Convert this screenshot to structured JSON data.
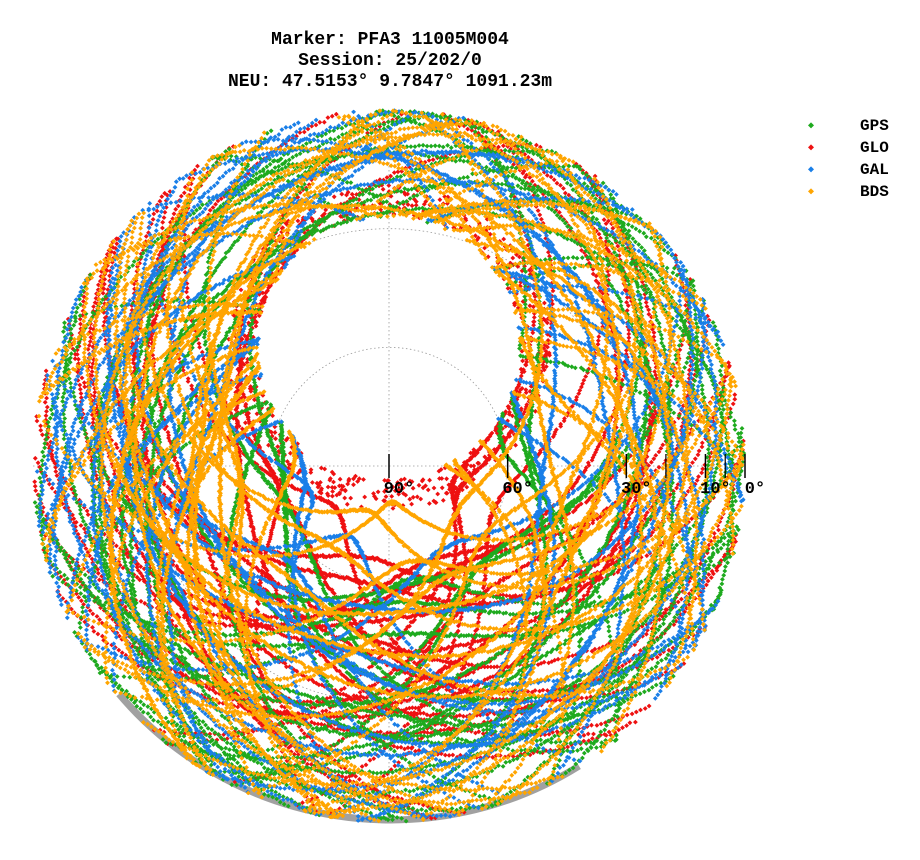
{
  "title": {
    "line1": "Marker: PFA3 11005M004",
    "line2": "Session: 25/202/0",
    "line3": "NEU: 47.5153° 9.7847° 1091.23m"
  },
  "legend": [
    {
      "label": "GPS",
      "color": "#1eaa1e"
    },
    {
      "label": "GLO",
      "color": "#ee1111"
    },
    {
      "label": "GAL",
      "color": "#1a7fe8"
    },
    {
      "label": "BDS",
      "color": "#ffa500"
    }
  ],
  "chart_data": {
    "type": "scatter",
    "projection": "polar skyplot (azimuth/elevation)",
    "elevation_ticks": [
      90,
      60,
      30,
      10,
      0
    ],
    "elevation_tick_labels": [
      "90°",
      "60°",
      "30°",
      "10°",
      "0°"
    ],
    "series": [
      {
        "name": "GPS",
        "color": "#1eaa1e"
      },
      {
        "name": "GLO",
        "color": "#ee1111"
      },
      {
        "name": "GAL",
        "color": "#1a7fe8"
      },
      {
        "name": "BDS",
        "color": "#ffa500"
      }
    ],
    "notes_visual": {
      "empty_zone_center_elevation_deg": 60,
      "empty_zone_azimuth_deg": 0,
      "empty_zone_radius_deg": 33,
      "grid": true
    }
  }
}
